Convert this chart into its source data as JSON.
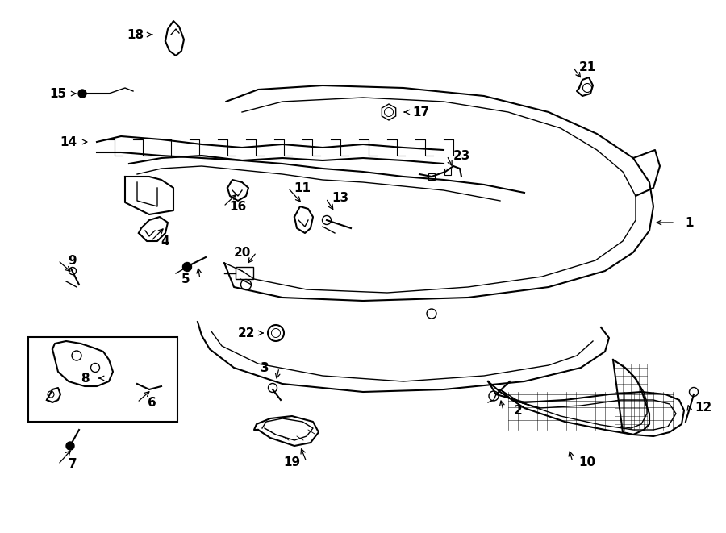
{
  "title": "",
  "background_color": "#ffffff",
  "line_color": "#000000",
  "label_color": "#000000",
  "fig_width": 9.0,
  "fig_height": 6.61,
  "dpi": 100
}
